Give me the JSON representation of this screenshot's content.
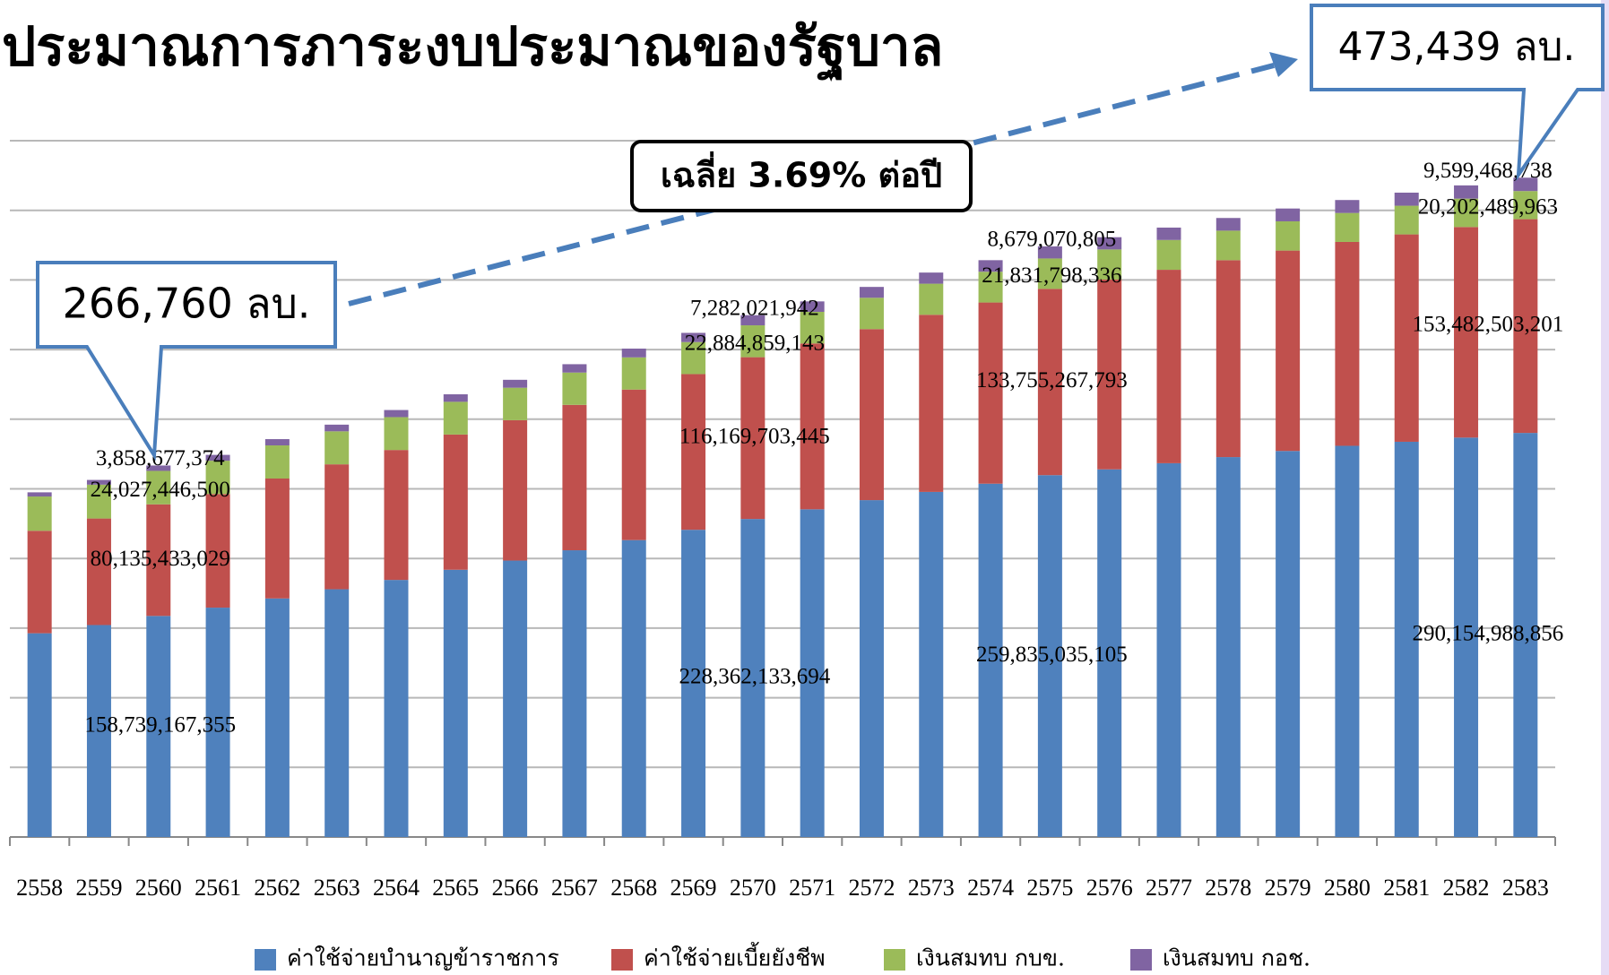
{
  "chart_data": {
    "type": "stacked-bar",
    "title": "ประมาณการภาระงบประมาณของรัฐบาล",
    "annotations": [
      "266,760 ลบ.",
      "473,439 ลบ.",
      "เฉลี่ย 3.69% ต่อปี"
    ],
    "categories": [
      "2558",
      "2559",
      "2560",
      "2561",
      "2562",
      "2563",
      "2564",
      "2565",
      "2566",
      "2567",
      "2568",
      "2569",
      "2570",
      "2571",
      "2572",
      "2573",
      "2574",
      "2575",
      "2576",
      "2577",
      "2578",
      "2579",
      "2580",
      "2581",
      "2582",
      "2583"
    ],
    "ylim": [
      0,
      500000000000
    ],
    "yticks": [
      0,
      50000000000,
      100000000000,
      150000000000,
      200000000000,
      250000000000,
      300000000000,
      350000000000,
      400000000000,
      450000000000,
      500000000000
    ],
    "grid": true,
    "legend": "bottom",
    "series": [
      {
        "name": "ค่าใช้จ่ายบำนาญข้าราชการ",
        "color": "#4f81bd",
        "values": [
          146300000000,
          152200000000,
          158739167355,
          164700000000,
          171300000000,
          177900000000,
          184600000000,
          191900000000,
          198500000000,
          205900000000,
          213200000000,
          220600000000,
          228362133694,
          235300000000,
          241900000000,
          247800000000,
          253700000000,
          259835035105,
          264000000000,
          268400000000,
          272800000000,
          277200000000,
          280900000000,
          283800000000,
          286800000000,
          290154988856
        ],
        "value_labels": [
          null,
          null,
          "158,739,167,355",
          null,
          null,
          null,
          null,
          null,
          null,
          null,
          null,
          null,
          "228,362,133,694",
          null,
          null,
          null,
          null,
          "259,835,035,105",
          null,
          null,
          null,
          null,
          null,
          null,
          null,
          "290,154,988,856"
        ]
      },
      {
        "name": "ค่าใช้จ่ายเบี้ยยังชีพ",
        "color": "#c0504d",
        "values": [
          73600000000,
          76500000000,
          80135433029,
          81600000000,
          86100000000,
          89700000000,
          93300000000,
          97100000000,
          100800000000,
          104400000000,
          108100000000,
          111800000000,
          116169703445,
          119100000000,
          122800000000,
          127200000000,
          130100000000,
          133755267793,
          136300000000,
          138900000000,
          141400000000,
          143900000000,
          146400000000,
          148900000000,
          151200000000,
          153482503201
        ],
        "value_labels": [
          null,
          null,
          "80,135,433,029",
          null,
          null,
          null,
          null,
          null,
          null,
          null,
          null,
          null,
          "116,169,703,445",
          null,
          null,
          null,
          null,
          "133,755,267,793",
          null,
          null,
          null,
          null,
          null,
          null,
          null,
          "153,482,503,201"
        ]
      },
      {
        "name": "เงินสมทบ กบข.",
        "color": "#9bbb59",
        "values": [
          24600000000,
          24300000000,
          24027446500,
          23900000000,
          23800000000,
          23700000000,
          23600000000,
          23500000000,
          23300000000,
          23200000000,
          23100000000,
          23000000000,
          22884859143,
          22700000000,
          22500000000,
          22300000000,
          22100000000,
          21831798336,
          21600000000,
          21400000000,
          21200000000,
          21000000000,
          20800000000,
          20600000000,
          20400000000,
          20202489963
        ],
        "value_labels": [
          null,
          null,
          "24,027,446,500",
          null,
          null,
          null,
          null,
          null,
          null,
          null,
          null,
          null,
          "22,884,859,143",
          null,
          null,
          null,
          null,
          "21,831,798,336",
          null,
          null,
          null,
          null,
          null,
          null,
          null,
          "20,202,489,963"
        ]
      },
      {
        "name": "เงินสมทบ กอช.",
        "color": "#8064a2",
        "values": [
          3000000000,
          3400000000,
          3858677374,
          4200000000,
          4500000000,
          4800000000,
          5100000000,
          5400000000,
          5700000000,
          6000000000,
          6300000000,
          6600000000,
          7282021942,
          7500000000,
          7800000000,
          8000000000,
          8300000000,
          8679070805,
          8800000000,
          8900000000,
          9100000000,
          9200000000,
          9300000000,
          9400000000,
          9500000000,
          9599468738
        ],
        "value_labels": [
          null,
          null,
          "3,858,677,374",
          null,
          null,
          null,
          null,
          null,
          null,
          null,
          null,
          null,
          "7,282,021,942",
          null,
          null,
          null,
          null,
          "8,679,070,805",
          null,
          null,
          null,
          null,
          null,
          null,
          null,
          "9,599,468,738"
        ]
      }
    ]
  }
}
